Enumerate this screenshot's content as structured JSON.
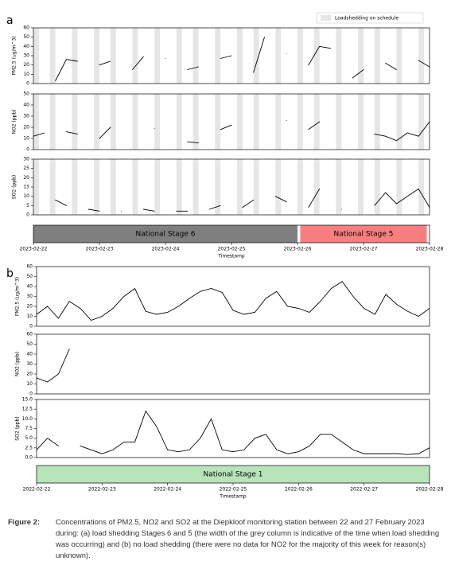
{
  "chart_data": [
    {
      "type": "line",
      "ylabel": "PM2.5 (ug/m^3)",
      "xlim": [
        0,
        144
      ],
      "ylim": [
        0,
        60
      ],
      "yticks": [
        0,
        10,
        20,
        30,
        40,
        50,
        60
      ],
      "x": [
        0,
        4,
        8,
        12,
        16,
        20,
        24,
        28,
        32,
        36,
        40,
        44,
        48,
        52,
        56,
        60,
        64,
        68,
        72,
        76,
        80,
        84,
        88,
        92,
        96,
        100,
        104,
        108,
        112,
        116,
        120,
        124,
        128,
        132,
        136,
        140,
        144
      ],
      "series": [
        {
          "color": "#000000",
          "values": [
            17,
            null,
            3,
            26,
            24,
            null,
            20,
            24,
            null,
            15,
            29,
            null,
            27,
            null,
            15,
            18,
            null,
            27,
            30,
            null,
            12,
            50,
            null,
            32,
            null,
            20,
            40,
            38,
            null,
            6,
            15,
            null,
            22,
            15,
            null,
            25,
            18
          ]
        }
      ]
    },
    {
      "type": "line",
      "ylabel": "NO2 (ppb)",
      "xlim": [
        0,
        144
      ],
      "ylim": [
        0,
        50
      ],
      "yticks": [
        0,
        10,
        20,
        30,
        40,
        50
      ],
      "x": [
        0,
        4,
        8,
        12,
        16,
        20,
        24,
        28,
        32,
        36,
        40,
        44,
        48,
        52,
        56,
        60,
        64,
        68,
        72,
        76,
        80,
        84,
        88,
        92,
        96,
        100,
        104,
        108,
        112,
        116,
        120,
        124,
        128,
        132,
        136,
        140,
        144
      ],
      "series": [
        {
          "color": "#000000",
          "values": [
            12,
            15,
            null,
            16,
            14,
            null,
            10,
            20,
            null,
            null,
            null,
            19,
            null,
            null,
            7,
            6,
            null,
            18,
            22,
            null,
            null,
            null,
            null,
            26,
            null,
            18,
            25,
            null,
            null,
            null,
            null,
            14,
            12,
            8,
            15,
            12,
            25
          ]
        }
      ]
    },
    {
      "type": "line",
      "ylabel": "SO2 (ppb)",
      "xlabel": "Timestamp",
      "xlim": [
        0,
        144
      ],
      "ylim": [
        0,
        30
      ],
      "yticks": [
        0,
        5,
        10,
        15,
        20,
        25,
        30
      ],
      "xticks": [
        {
          "value": 0,
          "label": "2023-02-22"
        },
        {
          "value": 24,
          "label": "2023-02-23"
        },
        {
          "value": 48,
          "label": "2023-02-24"
        },
        {
          "value": 72,
          "label": "2023-02-25"
        },
        {
          "value": 96,
          "label": "2023-02-26"
        },
        {
          "value": 120,
          "label": "2023-02-27"
        },
        {
          "value": 144,
          "label": "2023-02-28"
        }
      ],
      "x": [
        0,
        4,
        8,
        12,
        16,
        20,
        24,
        28,
        32,
        36,
        40,
        44,
        48,
        52,
        56,
        60,
        64,
        68,
        72,
        76,
        80,
        84,
        88,
        92,
        96,
        100,
        104,
        108,
        112,
        116,
        120,
        124,
        128,
        132,
        136,
        140,
        144
      ],
      "series": [
        {
          "color": "#000000",
          "values": [
            1,
            null,
            8,
            5,
            null,
            3,
            2,
            null,
            2,
            null,
            3,
            2,
            null,
            2,
            2,
            null,
            3,
            5,
            null,
            4,
            8,
            null,
            10,
            7,
            null,
            4,
            14,
            null,
            3,
            null,
            null,
            5,
            12,
            6,
            10,
            14,
            4
          ]
        }
      ]
    },
    {
      "type": "line",
      "ylabel": "PM2.5 (ug/m^3)",
      "xlim": [
        0,
        144
      ],
      "ylim": [
        0,
        60
      ],
      "yticks": [
        0,
        10,
        20,
        30,
        40,
        50,
        60
      ],
      "x": [
        0,
        4,
        8,
        12,
        16,
        20,
        24,
        28,
        32,
        36,
        40,
        44,
        48,
        52,
        56,
        60,
        64,
        68,
        72,
        76,
        80,
        84,
        88,
        92,
        96,
        100,
        104,
        108,
        112,
        116,
        120,
        124,
        128,
        132,
        136,
        140,
        144
      ],
      "series": [
        {
          "color": "#000000",
          "values": [
            12,
            20,
            8,
            25,
            18,
            6,
            10,
            18,
            30,
            38,
            15,
            12,
            14,
            20,
            28,
            35,
            38,
            34,
            16,
            12,
            14,
            28,
            35,
            20,
            18,
            14,
            25,
            38,
            45,
            30,
            18,
            12,
            32,
            22,
            15,
            10,
            18
          ]
        }
      ]
    },
    {
      "type": "line",
      "ylabel": "NO2 (ppb)",
      "xlim": [
        0,
        144
      ],
      "ylim": [
        0,
        60
      ],
      "yticks": [
        0,
        10,
        20,
        30,
        40,
        50,
        60
      ],
      "x": [
        0,
        4,
        8,
        12,
        16,
        20,
        24,
        28,
        32,
        36,
        40,
        44,
        48,
        52,
        56,
        60,
        64,
        68,
        72,
        76,
        80,
        84,
        88,
        92,
        96,
        100,
        104,
        108,
        112,
        116,
        120,
        124,
        128,
        132,
        136,
        140,
        144
      ],
      "series": [
        {
          "color": "#000000",
          "values": [
            16,
            12,
            20,
            45,
            null,
            null,
            null,
            null,
            null,
            null,
            null,
            null,
            null,
            null,
            null,
            null,
            null,
            null,
            null,
            null,
            null,
            null,
            null,
            null,
            null,
            null,
            null,
            null,
            null,
            null,
            null,
            null,
            null,
            null,
            null,
            null,
            null
          ]
        }
      ]
    },
    {
      "type": "line",
      "ylabel": "SO2 (ppb)",
      "xlabel": "Timestamp",
      "xlim": [
        0,
        144
      ],
      "ylim": [
        0,
        15
      ],
      "yticks": [
        {
          "value": 0,
          "label": "0.0"
        },
        {
          "value": 2.5,
          "label": "2.5"
        },
        {
          "value": 5,
          "label": "5.0"
        },
        {
          "value": 7.5,
          "label": "7.5"
        },
        {
          "value": 10,
          "label": "10.0"
        },
        {
          "value": 12.5,
          "label": "12.5"
        },
        {
          "value": 15,
          "label": "15.0"
        }
      ],
      "xticks": [
        {
          "value": 0,
          "label": "2022-02-22"
        },
        {
          "value": 24,
          "label": "2022-02-23"
        },
        {
          "value": 48,
          "label": "2022-02-24"
        },
        {
          "value": 72,
          "label": "2022-02-25"
        },
        {
          "value": 96,
          "label": "2022-02-26"
        },
        {
          "value": 120,
          "label": "2022-02-27"
        },
        {
          "value": 144,
          "label": "2022-02-28"
        }
      ],
      "x": [
        0,
        4,
        8,
        12,
        16,
        20,
        24,
        28,
        32,
        36,
        40,
        44,
        48,
        52,
        56,
        60,
        64,
        68,
        72,
        76,
        80,
        84,
        88,
        92,
        96,
        100,
        104,
        108,
        112,
        116,
        120,
        124,
        128,
        132,
        136,
        140,
        144
      ],
      "series": [
        {
          "color": "#000000",
          "values": [
            2,
            5,
            3,
            null,
            3,
            2,
            1,
            2,
            4,
            4,
            12,
            8,
            2,
            1.5,
            2,
            5,
            10,
            2,
            1.5,
            2,
            5,
            6,
            2,
            1,
            1.5,
            3,
            6,
            6,
            4,
            2,
            1,
            1,
            1,
            1,
            0.8,
            1,
            2.5
          ]
        }
      ]
    }
  ],
  "panels": [
    {
      "label": "a",
      "legend": "Loadshedding on schedule",
      "shading_color": "#e6e6e6",
      "shading": [
        [
          0,
          2
        ],
        [
          6,
          8
        ],
        [
          14,
          16
        ],
        [
          22,
          24
        ],
        [
          28,
          30
        ],
        [
          36,
          38
        ],
        [
          44,
          46
        ],
        [
          52,
          54
        ],
        [
          58,
          60
        ],
        [
          66,
          68
        ],
        [
          74,
          76
        ],
        [
          80,
          82
        ],
        [
          88,
          90
        ],
        [
          96,
          98
        ],
        [
          102,
          104
        ],
        [
          110,
          112
        ],
        [
          118,
          120
        ],
        [
          124,
          126
        ],
        [
          132,
          134
        ],
        [
          140,
          142
        ]
      ],
      "stages": [
        {
          "label": "National Stage 6",
          "start": 0,
          "end": 96,
          "color": "#7f7f7f"
        },
        {
          "label": "National Stage 5",
          "start": 97,
          "end": 143,
          "color": "#f77f7f"
        }
      ]
    },
    {
      "label": "b",
      "stages": [
        {
          "label": "National Stage 1",
          "start": 0,
          "end": 144,
          "color": "#b7e4b9"
        }
      ]
    }
  ],
  "caption": {
    "label": "Figure 2:",
    "text": "Concentrations of PM2.5, NO2 and SO2 at the Diepkloof monitoring station between 22 and 27 February 2023 during: (a) load shedding Stages 6 and 5 (the width of the grey column is indicative of the time when load shedding was occurring) and (b) no load shedding (there were no data for NO2 for the majority of this week for reason(s) unknown)."
  }
}
